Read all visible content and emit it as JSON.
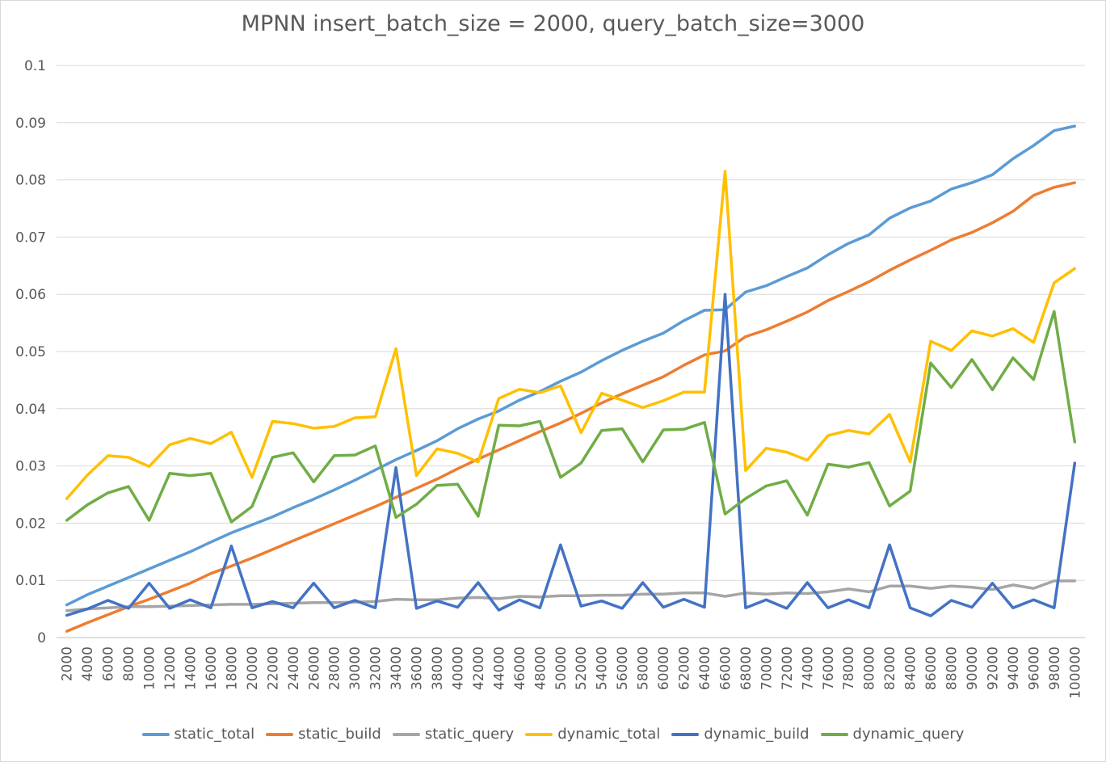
{
  "chart_data": {
    "type": "line",
    "title": "MPNN insert_batch_size = 2000, query_batch_size=3000",
    "xlabel": "",
    "ylabel": "",
    "ylim": [
      0,
      0.1
    ],
    "yticks": [
      "0",
      "0.01",
      "0.02",
      "0.03",
      "0.04",
      "0.05",
      "0.06",
      "0.07",
      "0.08",
      "0.09",
      "0.1"
    ],
    "grid": true,
    "legend_position": "bottom",
    "categories": [
      "2000",
      "4000",
      "6000",
      "8000",
      "10000",
      "12000",
      "14000",
      "16000",
      "18000",
      "20000",
      "22000",
      "24000",
      "26000",
      "28000",
      "30000",
      "32000",
      "34000",
      "36000",
      "38000",
      "40000",
      "42000",
      "44000",
      "46000",
      "48000",
      "50000",
      "52000",
      "54000",
      "56000",
      "58000",
      "60000",
      "62000",
      "64000",
      "66000",
      "68000",
      "70000",
      "72000",
      "74000",
      "76000",
      "78000",
      "80000",
      "82000",
      "84000",
      "86000",
      "88000",
      "90000",
      "92000",
      "94000",
      "96000",
      "98000",
      "100000"
    ],
    "series": [
      {
        "name": "static_total",
        "color": "#5b9bd5",
        "values": [
          0.0057,
          0.0075,
          0.009,
          0.0105,
          0.012,
          0.0135,
          0.015,
          0.0167,
          0.0183,
          0.0197,
          0.0211,
          0.0227,
          0.0242,
          0.0258,
          0.0275,
          0.0293,
          0.0311,
          0.0327,
          0.0344,
          0.0365,
          0.0382,
          0.0396,
          0.0415,
          0.043,
          0.0448,
          0.0464,
          0.0484,
          0.0502,
          0.0518,
          0.0532,
          0.0554,
          0.0572,
          0.0573,
          0.0604,
          0.0615,
          0.0631,
          0.0646,
          0.0669,
          0.0689,
          0.0704,
          0.0733,
          0.0751,
          0.0763,
          0.0784,
          0.0795,
          0.0809,
          0.0837,
          0.086,
          0.0886,
          0.0894
        ]
      },
      {
        "name": "static_build",
        "color": "#ed7d31",
        "values": [
          0.0011,
          0.0026,
          0.004,
          0.0054,
          0.0067,
          0.0081,
          0.0095,
          0.0112,
          0.0125,
          0.0139,
          0.0154,
          0.0169,
          0.0184,
          0.0199,
          0.0214,
          0.0229,
          0.0245,
          0.0261,
          0.0277,
          0.0295,
          0.0312,
          0.0328,
          0.0344,
          0.036,
          0.0375,
          0.0392,
          0.041,
          0.0426,
          0.0441,
          0.0456,
          0.0476,
          0.0494,
          0.0501,
          0.0526,
          0.0538,
          0.0553,
          0.0569,
          0.0589,
          0.0605,
          0.0622,
          0.0642,
          0.066,
          0.0677,
          0.0695,
          0.0708,
          0.0725,
          0.0745,
          0.0773,
          0.0787,
          0.0795
        ]
      },
      {
        "name": "static_query",
        "color": "#a5a5a5",
        "values": [
          0.0047,
          0.005,
          0.0052,
          0.0054,
          0.0054,
          0.0055,
          0.0056,
          0.0057,
          0.0058,
          0.0058,
          0.0059,
          0.006,
          0.0061,
          0.0061,
          0.0062,
          0.0063,
          0.0067,
          0.0066,
          0.0066,
          0.0069,
          0.007,
          0.0068,
          0.0072,
          0.0071,
          0.0073,
          0.0073,
          0.0074,
          0.0074,
          0.0076,
          0.0076,
          0.0078,
          0.0078,
          0.0072,
          0.0078,
          0.0076,
          0.0078,
          0.0077,
          0.008,
          0.0085,
          0.008,
          0.009,
          0.009,
          0.0086,
          0.009,
          0.0088,
          0.0084,
          0.0092,
          0.0086,
          0.0099,
          0.0099
        ]
      },
      {
        "name": "dynamic_total",
        "color": "#ffc000",
        "values": [
          0.0243,
          0.0284,
          0.0318,
          0.0315,
          0.0299,
          0.0337,
          0.0348,
          0.0339,
          0.0359,
          0.028,
          0.0378,
          0.0374,
          0.0366,
          0.0369,
          0.0384,
          0.0386,
          0.0505,
          0.0283,
          0.033,
          0.0322,
          0.0307,
          0.0418,
          0.0434,
          0.0428,
          0.044,
          0.0358,
          0.0427,
          0.0415,
          0.0402,
          0.0414,
          0.0429,
          0.0429,
          0.0815,
          0.0292,
          0.0331,
          0.0324,
          0.031,
          0.0353,
          0.0362,
          0.0356,
          0.039,
          0.0307,
          0.0518,
          0.0502,
          0.0536,
          0.0527,
          0.054,
          0.0516,
          0.062,
          0.0645
        ]
      },
      {
        "name": "dynamic_build",
        "color": "#4472c4",
        "values": [
          0.0039,
          0.005,
          0.0065,
          0.0051,
          0.0095,
          0.0051,
          0.0066,
          0.0052,
          0.016,
          0.0052,
          0.0063,
          0.0052,
          0.0095,
          0.0052,
          0.0065,
          0.0052,
          0.0297,
          0.0051,
          0.0064,
          0.0053,
          0.0096,
          0.0048,
          0.0066,
          0.0052,
          0.0162,
          0.0055,
          0.0064,
          0.0051,
          0.0096,
          0.0053,
          0.0067,
          0.0053,
          0.06,
          0.0052,
          0.0066,
          0.0051,
          0.0096,
          0.0052,
          0.0066,
          0.0052,
          0.0162,
          0.0052,
          0.0038,
          0.0065,
          0.0053,
          0.0095,
          0.0052,
          0.0066,
          0.0052,
          0.0305
        ]
      },
      {
        "name": "dynamic_query",
        "color": "#70ad47",
        "values": [
          0.0205,
          0.0232,
          0.0253,
          0.0264,
          0.0205,
          0.0287,
          0.0283,
          0.0287,
          0.0202,
          0.0229,
          0.0315,
          0.0323,
          0.0272,
          0.0318,
          0.0319,
          0.0335,
          0.021,
          0.0233,
          0.0266,
          0.0268,
          0.0212,
          0.0371,
          0.037,
          0.0378,
          0.028,
          0.0305,
          0.0362,
          0.0365,
          0.0307,
          0.0363,
          0.0364,
          0.0376,
          0.0216,
          0.0243,
          0.0265,
          0.0274,
          0.0214,
          0.0303,
          0.0298,
          0.0306,
          0.023,
          0.0256,
          0.048,
          0.0437,
          0.0486,
          0.0433,
          0.0489,
          0.0451,
          0.057,
          0.0342
        ]
      }
    ]
  }
}
